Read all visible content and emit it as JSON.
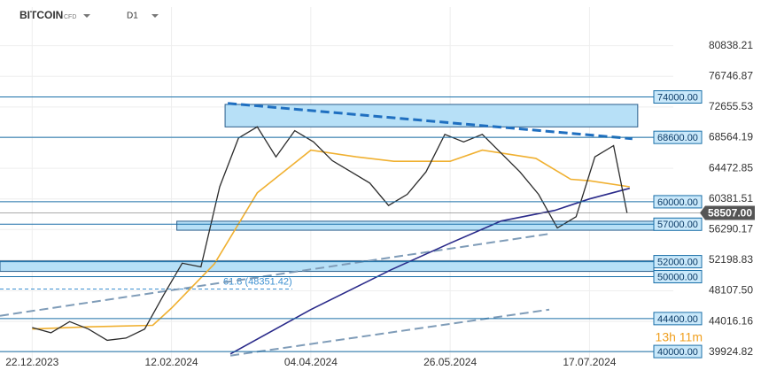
{
  "chart_data": {
    "type": "line",
    "title": "BITCOIN",
    "subtitle": "CFD",
    "timeframe": "D1",
    "xlim": [
      "10.12.2023",
      "10.08.2024"
    ],
    "xticks": [
      "22.12.2023",
      "12.02.2024",
      "04.04.2024",
      "26.05.2024",
      "17.07.2024"
    ],
    "ylim": [
      38000,
      86000
    ],
    "yticks": [
      {
        "value": 80838.21,
        "label": "80838.21"
      },
      {
        "value": 76746.87,
        "label": "76746.87"
      },
      {
        "value": 72655.53,
        "label": "72655.53"
      },
      {
        "value": 68564.19,
        "label": "68564.19"
      },
      {
        "value": 64472.85,
        "label": "64472.85"
      },
      {
        "value": 60381.51,
        "label": "60381.51"
      },
      {
        "value": 56290.17,
        "label": "56290.17"
      },
      {
        "value": 52198.83,
        "label": "52198.83"
      },
      {
        "value": 48107.5,
        "label": "48107.50"
      },
      {
        "value": 44016.16,
        "label": "44016.16"
      },
      {
        "value": 39924.82,
        "label": "39924.82"
      }
    ],
    "grid": true,
    "x": [
      "22.12.2023",
      "29.12.2023",
      "05.01.2024",
      "12.01.2024",
      "19.01.2024",
      "26.01.2024",
      "02.02.2024",
      "09.02.2024",
      "16.02.2024",
      "23.02.2024",
      "01.03.2024",
      "08.03.2024",
      "15.03.2024",
      "22.03.2024",
      "29.03.2024",
      "05.04.2024",
      "12.04.2024",
      "19.04.2024",
      "26.04.2024",
      "03.05.2024",
      "10.05.2024",
      "17.05.2024",
      "24.05.2024",
      "31.05.2024",
      "07.06.2024",
      "14.06.2024",
      "21.06.2024",
      "28.06.2024",
      "05.07.2024",
      "12.07.2024",
      "19.07.2024",
      "26.07.2024",
      "31.07.2024"
    ],
    "series": [
      {
        "color": "#2b2b2b",
        "values": [
          43200,
          42500,
          44000,
          43000,
          41500,
          41800,
          43000,
          47500,
          51800,
          51300,
          62000,
          68500,
          70000,
          66000,
          69500,
          68000,
          65500,
          64000,
          62500,
          59500,
          61000,
          64000,
          69000,
          68000,
          69000,
          66500,
          64000,
          61000,
          56500,
          58000,
          66000,
          67500,
          58507
        ]
      }
    ],
    "overlays": [
      {
        "color": "#f0b030",
        "x": [
          "22.12.2023",
          "12.01.2024",
          "05.02.2024",
          "12.02.2024",
          "28.02.2024",
          "15.03.2024",
          "04.04.2024",
          "21.04.2024",
          "05.05.2024",
          "26.05.2024",
          "07.06.2024",
          "27.06.2024",
          "10.07.2024",
          "17.07.2024",
          "01.08.2024"
        ],
        "values": [
          43000,
          43300,
          43500,
          45800,
          51700,
          61200,
          66900,
          66000,
          65400,
          65400,
          66900,
          65800,
          63000,
          62800,
          62000
        ]
      },
      {
        "color": "#2a2a8a",
        "x": [
          "05.03.2024",
          "04.04.2024",
          "04.05.2024",
          "26.05.2024",
          "14.06.2024",
          "04.07.2024",
          "17.07.2024",
          "01.08.2024"
        ],
        "values": [
          39680,
          45600,
          50920,
          54470,
          57430,
          58840,
          60380,
          61800
        ]
      }
    ],
    "levels": [
      {
        "value": 74000,
        "label": "74000.00"
      },
      {
        "value": 68600,
        "label": "68600.00"
      },
      {
        "value": 60000,
        "label": "60000.00"
      },
      {
        "value": 57000,
        "label": "57000.00"
      },
      {
        "value": 52000,
        "label": "52000.00"
      },
      {
        "value": 50000,
        "label": "50000.00"
      },
      {
        "value": 44400,
        "label": "44400.00"
      },
      {
        "value": 40000,
        "label": "40000.00"
      }
    ],
    "zones": [
      {
        "x": [
          "03.03.2024",
          "04.08.2024"
        ],
        "from": 70000,
        "to": 73000
      },
      {
        "x": [
          "14.02.2024",
          "10.08.2024"
        ],
        "from": 56200,
        "to": 57400
      },
      {
        "x": [
          "10.12.2023",
          "10.08.2024"
        ],
        "from": 50700,
        "to": 52100
      }
    ],
    "trendlines": [
      {
        "x": [
          "04.03.2024",
          "02.08.2024"
        ],
        "values": [
          73152,
          68423
        ],
        "color": "#1f6fc0",
        "dashed": true,
        "width": 3
      },
      {
        "x": [
          "10.12.2023",
          "03.07.2024"
        ],
        "values": [
          44775,
          55771
        ],
        "color": "#7f9cb8",
        "dashed": true,
        "width": 2
      },
      {
        "x": [
          "05.03.2024",
          "02.07.2024"
        ],
        "values": [
          39454,
          45603
        ],
        "color": "#7f9cb8",
        "dashed": true,
        "width": 2
      }
    ],
    "fib": {
      "value": 48351.42,
      "label": "61.8 (48351.42)"
    },
    "current_price": {
      "value": 58507,
      "label": "58507.00"
    },
    "timer": "13h 11m"
  }
}
